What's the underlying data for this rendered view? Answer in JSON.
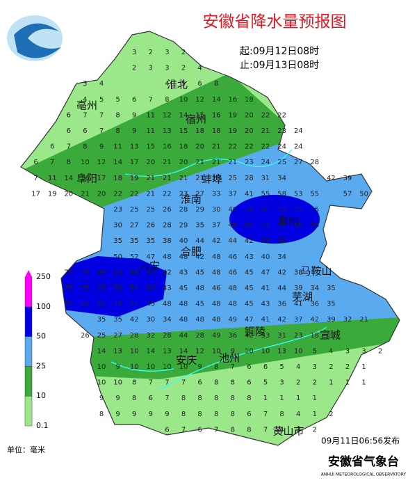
{
  "title": "安徽省降水量预报图",
  "start": "起:09月12日08时",
  "end": "止:09月13日08时",
  "legend": {
    "levels": [
      0.1,
      10,
      25,
      50,
      100,
      250
    ],
    "unit": "单位：毫米"
  },
  "publish": "09月11日06:56发布",
  "org": "安徽省气象台",
  "org_en": "ANHUI METEOROLOGICAL OBSERVATORY",
  "cities": [
    "亳州",
    "淮北",
    "宿州",
    "阜阳",
    "蚌埠",
    "淮南",
    "滁州",
    "合肥",
    "六安",
    "马鞍山",
    "芜湖",
    "铜陵",
    "宣城",
    "安庆",
    "池州",
    "黄山市"
  ],
  "grid": [
    [
      3,
      2,
      3,
      2
    ],
    [
      2,
      3,
      3,
      2,
      4
    ],
    [
      3,
      4
    ],
    [
      4,
      5,
      6,
      8
    ],
    [
      4,
      5,
      5,
      6,
      7,
      8,
      10,
      12,
      14,
      16,
      18
    ],
    [
      6,
      7,
      7,
      8,
      9,
      11,
      12,
      14,
      15,
      16,
      19,
      20,
      22,
      22
    ],
    [
      6,
      6,
      7,
      8,
      9,
      11,
      13,
      15,
      18,
      18,
      19,
      20,
      21,
      23,
      24
    ],
    [
      6,
      7,
      8,
      9,
      11,
      13,
      15,
      16,
      18,
      20,
      21,
      22,
      22,
      22,
      24,
      24
    ],
    [
      6,
      7,
      8,
      10,
      12,
      14,
      17,
      20,
      21,
      20,
      21,
      21,
      21,
      23,
      24,
      25,
      27,
      28
    ],
    [
      7,
      11,
      14,
      16,
      17,
      18,
      19,
      21,
      21,
      21,
      21,
      23,
      25,
      28,
      31,
      34
    ],
    [
      42,
      39
    ],
    [
      17,
      19,
      20,
      21,
      20,
      22,
      22,
      21,
      22,
      23,
      27,
      33,
      37,
      41,
      55,
      58,
      53,
      55
    ],
    [
      57,
      50
    ],
    [
      23,
      25,
      25,
      26,
      28,
      29,
      30,
      40,
      59,
      81,
      55,
      55,
      55
    ],
    [
      30,
      27,
      26,
      28,
      29,
      35,
      37,
      46,
      60,
      71,
      77,
      65,
      66
    ],
    [
      35,
      35,
      35,
      38,
      40,
      44,
      42,
      44,
      42,
      33,
      32
    ],
    [
      50,
      52,
      47,
      48,
      48,
      42,
      48,
      46,
      43,
      40,
      34
    ],
    [
      75,
      75,
      66,
      55,
      56,
      53,
      42,
      43,
      45,
      48,
      46,
      45,
      47,
      42,
      38
    ],
    [
      75,
      75,
      75,
      75,
      54,
      50,
      43,
      45,
      48,
      46,
      48,
      45,
      41,
      44,
      39,
      34,
      35
    ],
    [
      75,
      66,
      52,
      45,
      44,
      45,
      48,
      48,
      45,
      48,
      48,
      45,
      43,
      36,
      41,
      36,
      35
    ],
    [
      35,
      35,
      42,
      30,
      34,
      48,
      48,
      48,
      49,
      47,
      41,
      42,
      37,
      42,
      39,
      32,
      21
    ],
    [
      26,
      25,
      27,
      28,
      32,
      28,
      44,
      28,
      49,
      36,
      42,
      33,
      31,
      23,
      18,
      13
    ],
    [
      14,
      13,
      10,
      14,
      13,
      14,
      12,
      10,
      9,
      10,
      10,
      13,
      10,
      5,
      4,
      3,
      3,
      2
    ],
    [
      10,
      9,
      10,
      10,
      10,
      10,
      9,
      8,
      7,
      6,
      6,
      5,
      4,
      3,
      2,
      2,
      1
    ],
    [
      10,
      10,
      8,
      7,
      7,
      7,
      6,
      8,
      8,
      6,
      5,
      3,
      2,
      2,
      1,
      1,
      1
    ],
    [
      9,
      9,
      8,
      6,
      7,
      8,
      8,
      8,
      8,
      8,
      1,
      1,
      1,
      1
    ],
    [
      8,
      9,
      9,
      9,
      9,
      8,
      8,
      8,
      8,
      6,
      7,
      8,
      4,
      1,
      2
    ],
    [
      6,
      7,
      6,
      7,
      8,
      8,
      7,
      4,
      3,
      2
    ]
  ]
}
